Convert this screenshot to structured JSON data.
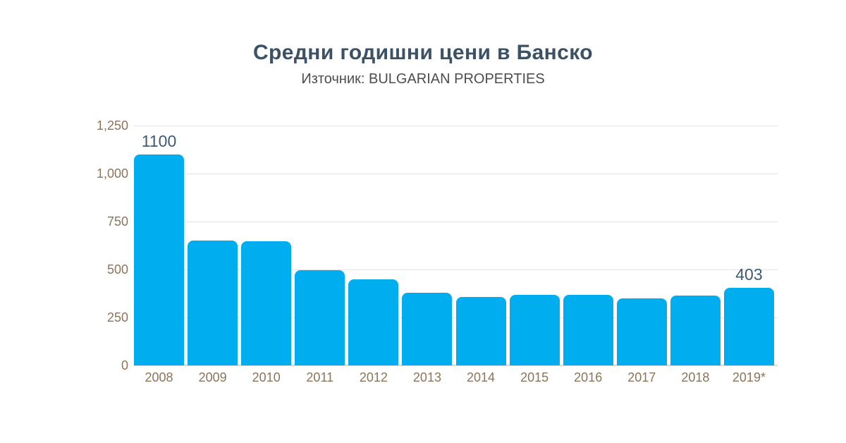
{
  "header": {
    "title": "Средни годишни цени в Банско",
    "subtitle": "Източник: BULGARIAN PROPERTIES"
  },
  "chart_data": {
    "type": "bar",
    "title": "Средни годишни цени в Банско",
    "subtitle": "Източник: BULGARIAN PROPERTIES",
    "categories": [
      "2008",
      "2009",
      "2010",
      "2011",
      "2012",
      "2013",
      "2014",
      "2015",
      "2016",
      "2017",
      "2018",
      "2019*"
    ],
    "values": [
      1100,
      650,
      648,
      495,
      450,
      380,
      358,
      368,
      367,
      350,
      365,
      403
    ],
    "labeled_points": [
      {
        "category": "2008",
        "label": "1100"
      },
      {
        "category": "2019*",
        "label": "403"
      }
    ],
    "xlabel": "",
    "ylabel": "",
    "ylim": [
      0,
      1250
    ],
    "ytick_interval": 250,
    "ytick_labels": [
      "0",
      "250",
      "500",
      "750",
      "1,000",
      "1,250"
    ],
    "grid": "horizontal",
    "legend": "none",
    "colors": {
      "background": "#ffffff",
      "bar": "#00aef0",
      "title": "#3b5266",
      "subtitle": "#4d4d4d",
      "axis_label": "#8c7459",
      "value_label": "#3e5a74",
      "gridline": "#e4e4e4",
      "baseline": "#d8d8d8"
    }
  }
}
